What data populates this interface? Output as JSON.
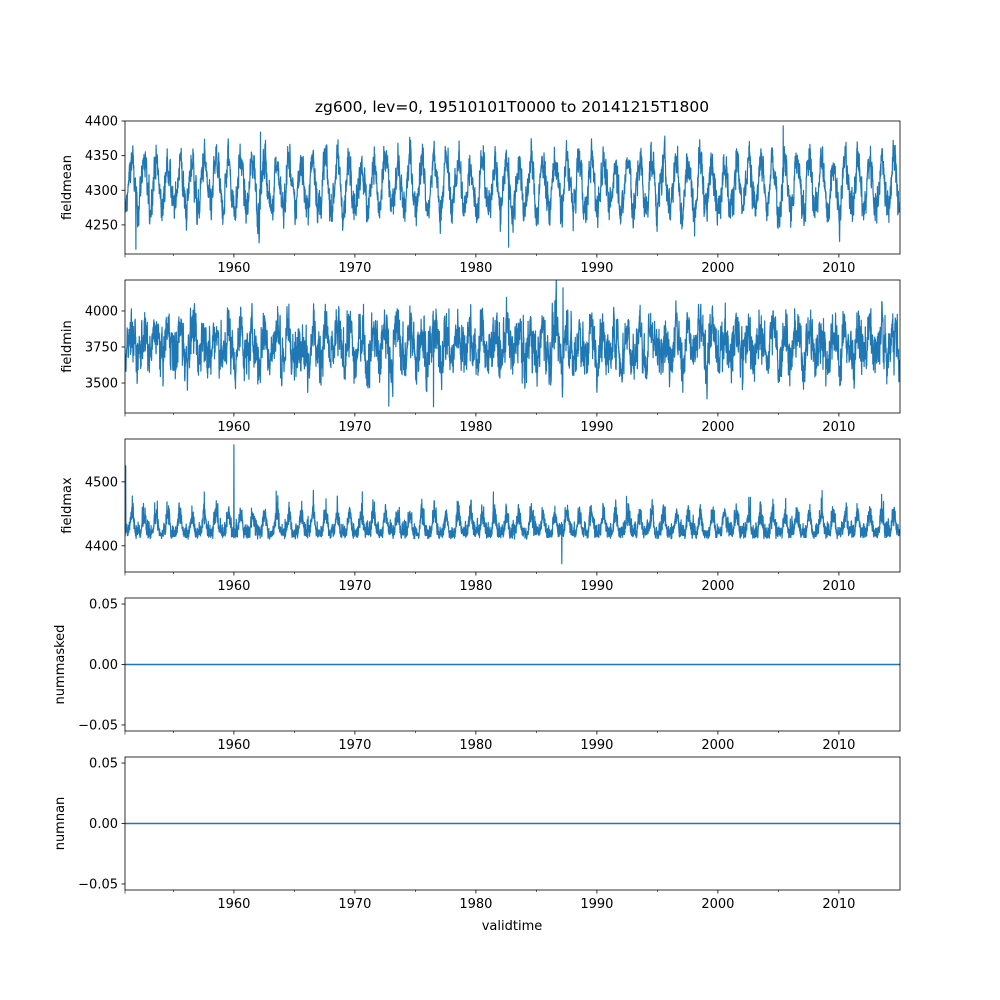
{
  "chart_data": {
    "type": "line",
    "title": "zg600, lev=0, 19510101T0000 to 20141215T1800",
    "xlabel": "validtime",
    "xlim": [
      1951.0,
      2015.05
    ],
    "x_ticks": [
      1960,
      1970,
      1980,
      1990,
      2000,
      2010
    ],
    "x_tick_labels": [
      "1960",
      "1970",
      "1980",
      "1990",
      "2000",
      "2010"
    ],
    "x_minor_ticks": [
      1951,
      1955,
      1965,
      1975,
      1985,
      1995,
      2005
    ],
    "color": "#1f77b4",
    "panels": [
      {
        "ylabel": "fieldmean",
        "ylim": [
          4208,
          4400
        ],
        "y_ticks": [
          4250,
          4300,
          4350,
          4400
        ],
        "y_tick_labels": [
          "4250",
          "4300",
          "4350",
          "4400"
        ],
        "model": {
          "mean": 4307,
          "seasonal_amplitude": 38,
          "noise": 14,
          "spike": 0
        },
        "extremes": [
          [
            1951.9,
            4215
          ],
          [
            1982.7,
            4218
          ],
          [
            2005.4,
            4393
          ],
          [
            1962.2,
            4384
          ]
        ]
      },
      {
        "ylabel": "fieldmin",
        "ylim": [
          3292,
          4215
        ],
        "y_ticks": [
          3500,
          3750,
          4000
        ],
        "y_tick_labels": [
          "3500",
          "3750",
          "4000"
        ],
        "model": {
          "mean": 3765,
          "seasonal_amplitude": 110,
          "noise": 95,
          "spike": 0
        },
        "extremes": [
          [
            1987.2,
            4160
          ],
          [
            1972.8,
            3340
          ],
          [
            1976.5,
            3335
          ]
        ]
      },
      {
        "ylabel": "fieldmax",
        "ylim": [
          4359,
          4567
        ],
        "y_ticks": [
          4400,
          4500
        ],
        "y_tick_labels": [
          "4400",
          "4500"
        ],
        "model": {
          "mean": 4418,
          "seasonal_amplitude": 22,
          "noise": 10,
          "spike": 40
        },
        "extremes": [
          [
            1960.0,
            4558
          ],
          [
            1951.05,
            4525
          ],
          [
            1987.1,
            4372
          ]
        ]
      },
      {
        "ylabel": "nummasked",
        "ylim": [
          -0.055,
          0.055
        ],
        "y_ticks": [
          -0.05,
          0.0,
          0.05
        ],
        "y_tick_labels": [
          "−0.05",
          "0.00",
          "0.05"
        ],
        "model": {
          "constant": 0
        }
      },
      {
        "ylabel": "numnan",
        "ylim": [
          -0.055,
          0.055
        ],
        "y_ticks": [
          -0.05,
          0.0,
          0.05
        ],
        "y_tick_labels": [
          "−0.05",
          "0.00",
          "0.05"
        ],
        "model": {
          "constant": 0
        }
      }
    ]
  }
}
